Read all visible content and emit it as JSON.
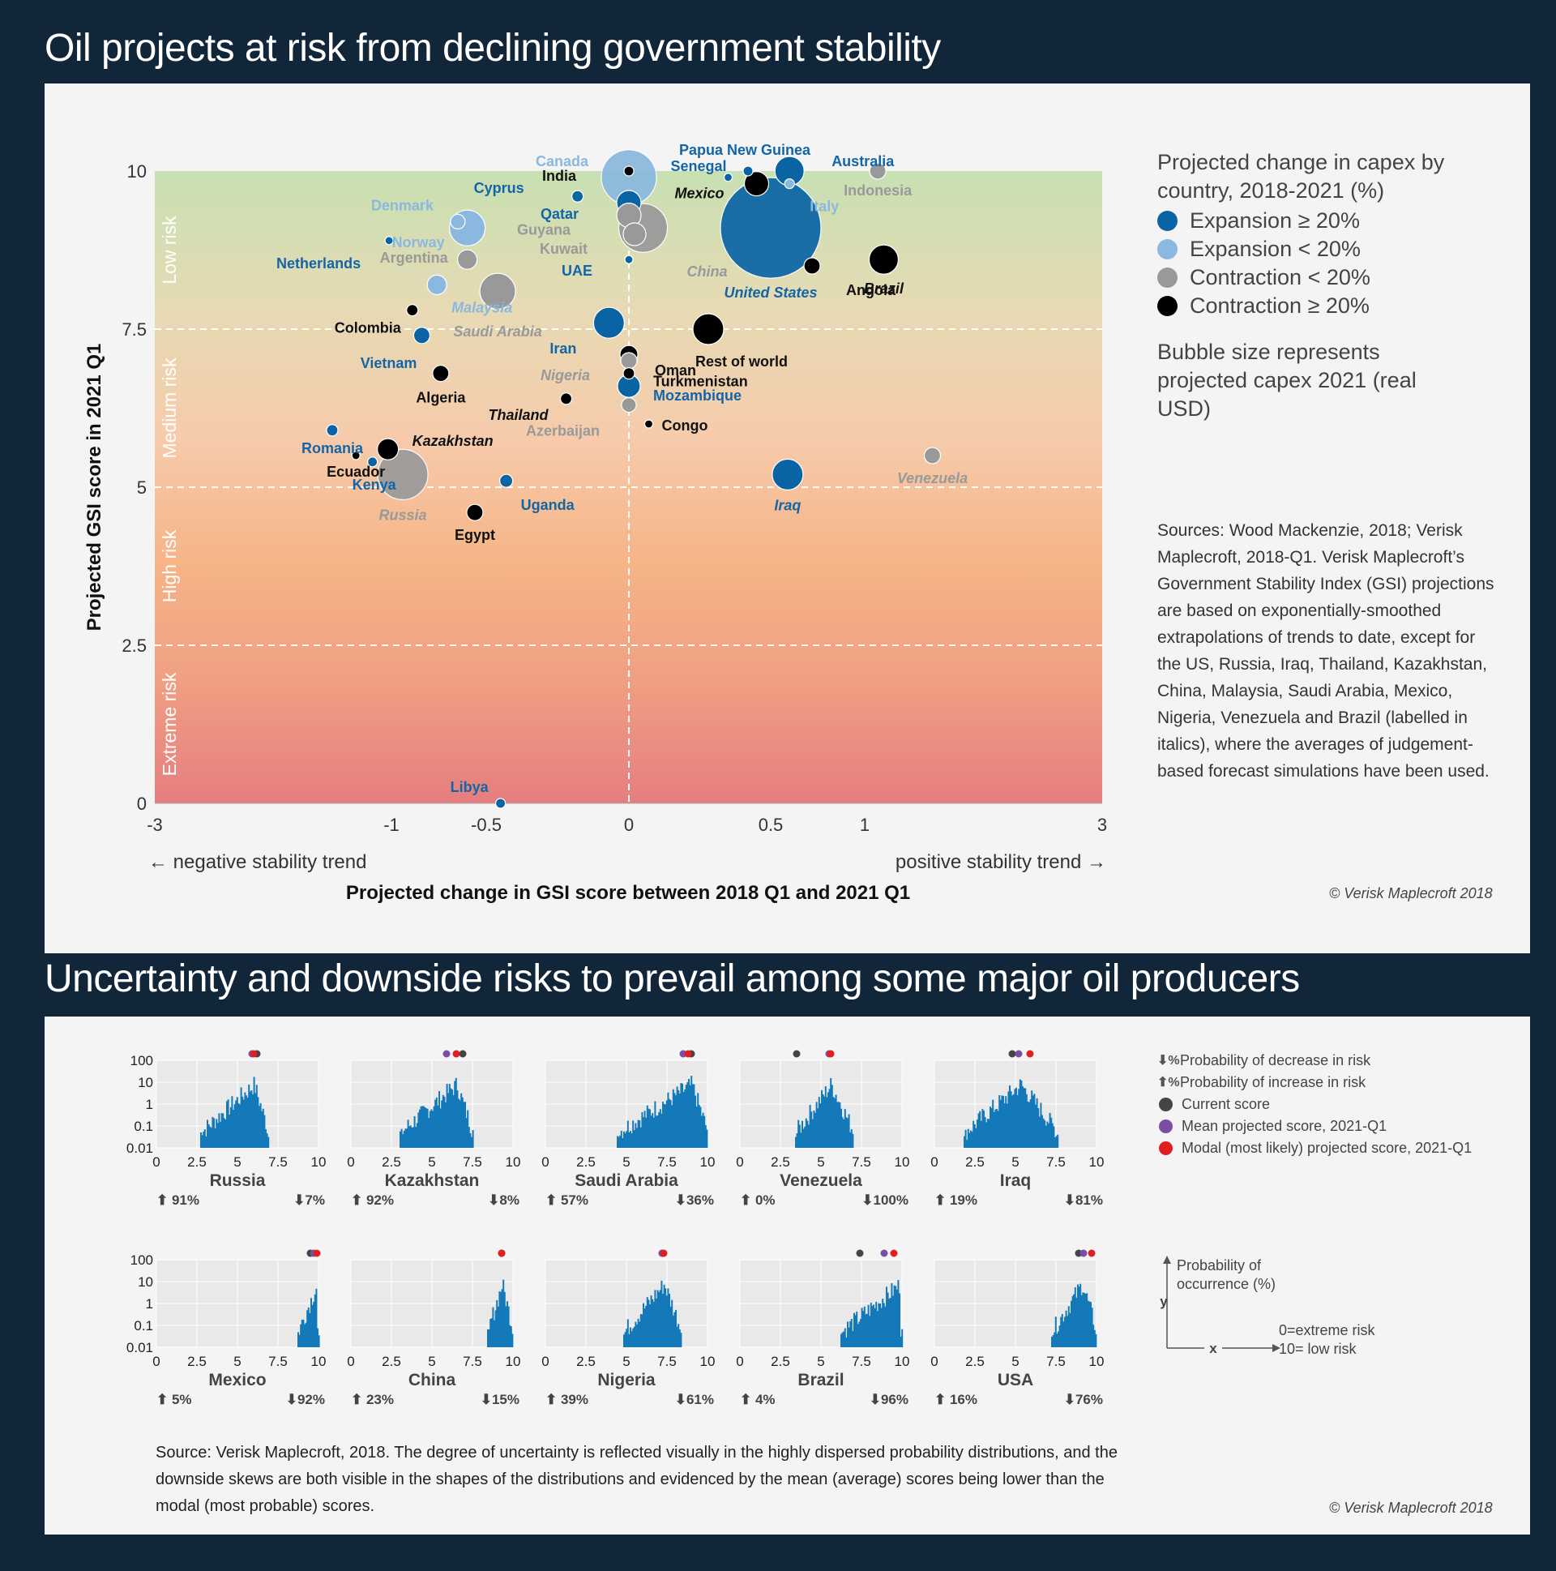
{
  "titles": {
    "top": "Oil projects at risk from declining government stability",
    "bottom": "Uncertainty and downside risks to prevail among some major oil producers"
  },
  "colors": {
    "expansion_big": "#0a64a4",
    "expansion_small": "#8ab8de",
    "contraction_small": "#999999",
    "contraction_big": "#000000",
    "hist_bar": "#1479b8",
    "current": "#444444",
    "mean": "#7b4ea6",
    "modal": "#e02020"
  },
  "legend1": {
    "heading": "Projected change in capex by country, 2018-2021 (%)",
    "items": [
      {
        "label": "Expansion ≥ 20%",
        "color": "#0a64a4"
      },
      {
        "label": "Expansion < 20%",
        "color": "#8ab8de"
      },
      {
        "label": "Contraction < 20%",
        "color": "#999999"
      },
      {
        "label": "Contraction ≥ 20%",
        "color": "#000000"
      }
    ],
    "size_note": "Bubble size represents projected capex 2021 (real USD)"
  },
  "sources1": "Sources: Wood Mackenzie, 2018; Verisk Maplecroft, 2018-Q1. Verisk Maplecroft’s Government Stability Index (GSI) projections are based on exponentially-smoothed extrapolations of trends to date, except for the US, Russia, Iraq, Thailand, Kazakhstan, China, Malaysia, Saudi Arabia, Mexico, Nigeria, Venezuela and Brazil (labelled in italics), where the averages of judgement-based forecast simulations have been used.",
  "copyright": "© Verisk Maplecroft 2018",
  "source2": "Source: Verisk Maplecroft, 2018. The degree of uncertainty is reflected visually in the highly dispersed probability distributions, and the downside skews are both visible in the shapes of the distributions and evidenced by the mean (average) scores being lower than the modal (most probable) scores.",
  "legend2": {
    "items": [
      {
        "sym": "⬇%",
        "label": "Probability of decrease in risk"
      },
      {
        "sym": "⬆%",
        "label": "Probability of increase in risk"
      },
      {
        "dot": "#444444",
        "label": "Current score"
      },
      {
        "dot": "#7b4ea6",
        "label": "Mean projected score, 2021-Q1"
      },
      {
        "dot": "#e02020",
        "label": "Modal (most likely) projected score, 2021-Q1"
      }
    ],
    "axis_y": "y",
    "axis_x": "x",
    "axis_desc": "Probability of occurrence (%)",
    "scale_desc_1": "0=extreme risk",
    "scale_desc_2": "10= low risk"
  },
  "chart_data": [
    {
      "type": "scatter",
      "title": "Oil projects at risk from declining government stability",
      "xlabel": "Projected change in GSI score between 2018 Q1 and 2021 Q1",
      "ylabel": "Projected GSI score in 2021 Q1",
      "x_note_left": "←  negative stability trend",
      "x_note_right": "positive stability trend  →",
      "xticks": [
        {
          "v": -3,
          "label": "-3"
        },
        {
          "v": -1,
          "label": "-1"
        },
        {
          "v": -0.5,
          "label": "-0.5"
        },
        {
          "v": 0,
          "label": "0"
        },
        {
          "v": 0.5,
          "label": "0.5"
        },
        {
          "v": 1,
          "label": "1"
        },
        {
          "v": 3,
          "label": "3"
        }
      ],
      "yticks": [
        {
          "v": 0,
          "label": "0"
        },
        {
          "v": 2.5,
          "label": "2.5"
        },
        {
          "v": 5,
          "label": "5"
        },
        {
          "v": 7.5,
          "label": "7.5"
        },
        {
          "v": 10,
          "label": "10"
        }
      ],
      "ylim": [
        0,
        10
      ],
      "bands": [
        {
          "label": "Extreme risk",
          "from": 0,
          "to": 2.5
        },
        {
          "label": "High risk",
          "from": 2.5,
          "to": 5
        },
        {
          "label": "Medium risk",
          "from": 5,
          "to": 7.5
        },
        {
          "label": "Low risk",
          "from": 7.5,
          "to": 10
        }
      ],
      "points": [
        {
          "name": "Canada",
          "x": 0,
          "y": 9.9,
          "cat": "expansion_small",
          "size": 34
        },
        {
          "name": "India",
          "x": 0,
          "y": 10.0,
          "cat": "contraction_big",
          "size": 6
        },
        {
          "name": "Senegal",
          "x": 0.35,
          "y": 9.9,
          "cat": "expansion_big",
          "size": 5
        },
        {
          "name": "Papua New Guinea",
          "x": 0.42,
          "y": 10.0,
          "cat": "expansion_big",
          "size": 6
        },
        {
          "name": "Australia",
          "x": 0.6,
          "y": 10.0,
          "cat": "expansion_big",
          "size": 18
        },
        {
          "name": "Indonesia",
          "x": 1.11,
          "y": 10.0,
          "cat": "contraction_small",
          "size": 10
        },
        {
          "name": "Mexico",
          "x": 0.45,
          "y": 9.8,
          "cat": "contraction_big",
          "size": 15
        },
        {
          "name": "Italy",
          "x": 0.6,
          "y": 9.8,
          "cat": "expansion_small",
          "size": 6
        },
        {
          "name": "Cyprus",
          "x": -0.18,
          "y": 9.6,
          "cat": "expansion_big",
          "size": 7
        },
        {
          "name": "Denmark",
          "x": -0.65,
          "y": 9.2,
          "cat": "expansion_small",
          "size": 9
        },
        {
          "name": "Norway",
          "x": -0.6,
          "y": 9.1,
          "cat": "expansion_small",
          "size": 22
        },
        {
          "name": "Qatar",
          "x": 0,
          "y": 9.5,
          "cat": "expansion_big",
          "size": 15
        },
        {
          "name": "Guyana",
          "x": 0,
          "y": 9.3,
          "cat": "contraction_small",
          "size": 15
        },
        {
          "name": "United States",
          "x": 0.5,
          "y": 9.1,
          "cat": "expansion_big",
          "size": 62
        },
        {
          "name": "China",
          "x": 0.05,
          "y": 9.1,
          "cat": "contraction_small",
          "size": 30
        },
        {
          "name": "Kuwait",
          "x": 0.02,
          "y": 9.0,
          "cat": "contraction_small",
          "size": 14
        },
        {
          "name": "Netherlands",
          "x": -1.02,
          "y": 8.9,
          "cat": "expansion_big",
          "size": 5
        },
        {
          "name": "Argentina",
          "x": -0.6,
          "y": 8.6,
          "cat": "contraction_small",
          "size": 12
        },
        {
          "name": "UAE",
          "x": 0,
          "y": 8.6,
          "cat": "expansion_big",
          "size": 5
        },
        {
          "name": "Brazil",
          "x": 1.16,
          "y": 8.6,
          "cat": "contraction_big",
          "size": 18
        },
        {
          "name": "Angola",
          "x": 0.72,
          "y": 8.5,
          "cat": "contraction_big",
          "size": 10
        },
        {
          "name": "Malaysia",
          "x": -0.76,
          "y": 8.2,
          "cat": "expansion_small",
          "size": 12
        },
        {
          "name": "Saudi Arabia",
          "x": -0.46,
          "y": 8.1,
          "cat": "contraction_small",
          "size": 22
        },
        {
          "name": "Colombia",
          "x": -0.89,
          "y": 7.8,
          "cat": "contraction_big",
          "size": 7
        },
        {
          "name": "Iran",
          "x": -0.07,
          "y": 7.6,
          "cat": "expansion_big",
          "size": 19
        },
        {
          "name": "Rest of world",
          "x": 0.28,
          "y": 7.5,
          "cat": "contraction_big",
          "size": 19
        },
        {
          "name": "Vietnam",
          "x": -0.84,
          "y": 7.4,
          "cat": "expansion_big",
          "size": 10
        },
        {
          "name": "Oman",
          "x": 0,
          "y": 7.1,
          "cat": "contraction_big",
          "size": 11
        },
        {
          "name": "Nigeria",
          "x": 0,
          "y": 7.0,
          "cat": "contraction_small",
          "size": 10
        },
        {
          "name": "Algeria",
          "x": -0.74,
          "y": 6.8,
          "cat": "contraction_big",
          "size": 10
        },
        {
          "name": "Turkmenistan",
          "x": 0,
          "y": 6.8,
          "cat": "contraction_big",
          "size": 7
        },
        {
          "name": "Mozambique",
          "x": 0,
          "y": 6.6,
          "cat": "expansion_big",
          "size": 14
        },
        {
          "name": "Thailand",
          "x": -0.22,
          "y": 6.4,
          "cat": "contraction_big",
          "size": 7
        },
        {
          "name": "Azerbaijan",
          "x": 0,
          "y": 6.3,
          "cat": "contraction_small",
          "size": 9
        },
        {
          "name": "Congo",
          "x": 0.07,
          "y": 6.0,
          "cat": "contraction_big",
          "size": 5
        },
        {
          "name": "Romania",
          "x": -1.5,
          "y": 5.9,
          "cat": "expansion_big",
          "size": 7
        },
        {
          "name": "Kazakhstan",
          "x": -1.03,
          "y": 5.6,
          "cat": "contraction_big",
          "size": 13
        },
        {
          "name": "Ecuador",
          "x": -1.3,
          "y": 5.5,
          "cat": "contraction_big",
          "size": 5
        },
        {
          "name": "Kenya",
          "x": -1.16,
          "y": 5.4,
          "cat": "expansion_big",
          "size": 6
        },
        {
          "name": "Russia",
          "x": -0.94,
          "y": 5.2,
          "cat": "contraction_small",
          "size": 31
        },
        {
          "name": "Iraq",
          "x": 0.59,
          "y": 5.2,
          "cat": "expansion_big",
          "size": 19
        },
        {
          "name": "Venezuela",
          "x": 1.57,
          "y": 5.5,
          "cat": "contraction_small",
          "size": 10
        },
        {
          "name": "Uganda",
          "x": -0.43,
          "y": 5.1,
          "cat": "expansion_big",
          "size": 8
        },
        {
          "name": "Egypt",
          "x": -0.56,
          "y": 4.6,
          "cat": "contraction_big",
          "size": 10
        },
        {
          "name": "Libya",
          "x": -0.45,
          "y": 0,
          "cat": "expansion_big",
          "size": 6
        }
      ]
    },
    {
      "type": "bar",
      "title": "Uncertainty and downside risks to prevail among some major oil producers",
      "yscale": "log",
      "yticks": [
        "100",
        "10",
        "1",
        "0.1",
        "0.01"
      ],
      "xticks": [
        "0",
        "2.5",
        "5",
        "7.5",
        "10"
      ],
      "xlim": [
        0,
        10
      ],
      "panels": [
        {
          "name": "Russia",
          "up": "⬆ 91%",
          "down": "⬇7%",
          "range": [
            2.7,
            6.9
          ],
          "peak": 6.0,
          "current": 6.2,
          "mean": 5.9,
          "modal": 6.0
        },
        {
          "name": "Kazakhstan",
          "up": "⬆ 92%",
          "down": "⬇8%",
          "range": [
            3.0,
            7.5
          ],
          "peak": 6.5,
          "current": 6.9,
          "mean": 5.9,
          "modal": 6.5
        },
        {
          "name": "Saudi Arabia",
          "up": "⬆ 57%",
          "down": "⬇36%",
          "range": [
            4.4,
            10.0
          ],
          "peak": 9.0,
          "current": 9.0,
          "mean": 8.5,
          "modal": 8.8
        },
        {
          "name": "Venezuela",
          "up": "⬆ 0%",
          "down": "⬇100%",
          "range": [
            3.4,
            7.0
          ],
          "peak": 5.6,
          "current": 3.5,
          "mean": 5.5,
          "modal": 5.6
        },
        {
          "name": "Iraq",
          "up": "⬆ 19%",
          "down": "⬇81%",
          "range": [
            1.8,
            7.6
          ],
          "peak": 5.3,
          "current": 4.8,
          "mean": 5.2,
          "modal": 5.9
        },
        {
          "name": "Mexico",
          "up": "⬆ 5%",
          "down": "⬇92%",
          "range": [
            8.7,
            10.0
          ],
          "peak": 9.9,
          "current": 9.5,
          "mean": 9.7,
          "modal": 9.9
        },
        {
          "name": "China",
          "up": "⬆ 23%",
          "down": "⬇15%",
          "range": [
            8.4,
            10.0
          ],
          "peak": 9.3,
          "current": 9.3,
          "mean": 9.3,
          "modal": 9.3
        },
        {
          "name": "Nigeria",
          "up": "⬆ 39%",
          "down": "⬇61%",
          "range": [
            4.8,
            8.4
          ],
          "peak": 7.3,
          "current": 7.2,
          "mean": 7.2,
          "modal": 7.3
        },
        {
          "name": "Brazil",
          "up": "⬆ 4%",
          "down": "⬇96%",
          "range": [
            6.2,
            10.0
          ],
          "peak": 9.9,
          "current": 7.4,
          "mean": 8.9,
          "modal": 9.5
        },
        {
          "name": "USA",
          "up": "⬆ 16%",
          "down": "⬇76%",
          "range": [
            7.2,
            10.0
          ],
          "peak": 9.1,
          "current": 8.9,
          "mean": 9.2,
          "modal": 9.7
        }
      ]
    }
  ]
}
